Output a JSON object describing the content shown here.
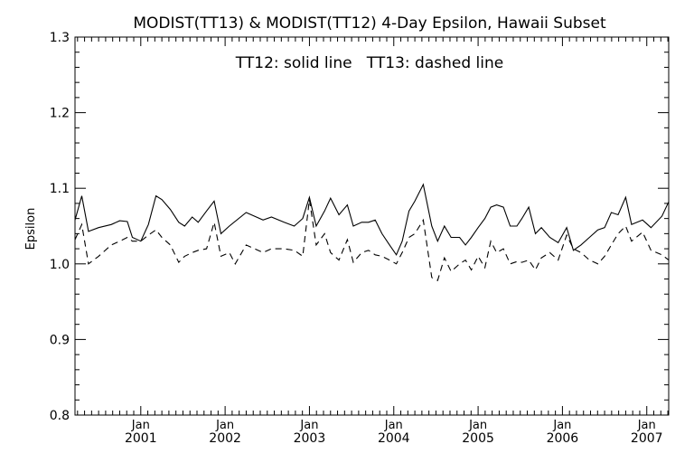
{
  "chart_data": {
    "type": "line",
    "title": "MODIST(TT13) & MODIST(TT12) 4-Day Epsilon, Hawaii Subset",
    "annotation": "TT12: solid line   TT13: dashed line",
    "ylabel": "Epsilon",
    "xlabel": "",
    "ylim": [
      0.8,
      1.3
    ],
    "xlim": [
      2000.22,
      2007.26
    ],
    "yticks": [
      "0.8",
      "0.9",
      "1.0",
      "1.1",
      "1.2",
      "1.3"
    ],
    "xticks": [
      {
        "month": "Jan",
        "year": "2001"
      },
      {
        "month": "Jan",
        "year": "2002"
      },
      {
        "month": "Jan",
        "year": "2003"
      },
      {
        "month": "Jan",
        "year": "2004"
      },
      {
        "month": "Jan",
        "year": "2005"
      },
      {
        "month": "Jan",
        "year": "2006"
      },
      {
        "month": "Jan",
        "year": "2007"
      }
    ],
    "grid": false,
    "series": [
      {
        "name": "TT12",
        "style": "solid",
        "color": "#000000",
        "points": [
          [
            2000.22,
            1.058
          ],
          [
            2000.3,
            1.09
          ],
          [
            2000.38,
            1.043
          ],
          [
            2000.5,
            1.048
          ],
          [
            2000.65,
            1.052
          ],
          [
            2000.75,
            1.057
          ],
          [
            2000.84,
            1.056
          ],
          [
            2000.9,
            1.035
          ],
          [
            2001.0,
            1.03
          ],
          [
            2001.09,
            1.052
          ],
          [
            2001.18,
            1.09
          ],
          [
            2001.25,
            1.085
          ],
          [
            2001.35,
            1.072
          ],
          [
            2001.45,
            1.055
          ],
          [
            2001.52,
            1.05
          ],
          [
            2001.61,
            1.062
          ],
          [
            2001.68,
            1.055
          ],
          [
            2001.78,
            1.07
          ],
          [
            2001.87,
            1.083
          ],
          [
            2001.95,
            1.04
          ],
          [
            2002.05,
            1.05
          ],
          [
            2002.25,
            1.068
          ],
          [
            2002.45,
            1.058
          ],
          [
            2002.55,
            1.062
          ],
          [
            2002.7,
            1.055
          ],
          [
            2002.82,
            1.05
          ],
          [
            2002.92,
            1.06
          ],
          [
            2003.0,
            1.088
          ],
          [
            2003.08,
            1.05
          ],
          [
            2003.18,
            1.07
          ],
          [
            2003.25,
            1.087
          ],
          [
            2003.35,
            1.065
          ],
          [
            2003.45,
            1.078
          ],
          [
            2003.52,
            1.05
          ],
          [
            2003.62,
            1.055
          ],
          [
            2003.7,
            1.055
          ],
          [
            2003.78,
            1.058
          ],
          [
            2003.86,
            1.04
          ],
          [
            2003.95,
            1.025
          ],
          [
            2004.03,
            1.012
          ],
          [
            2004.1,
            1.03
          ],
          [
            2004.18,
            1.07
          ],
          [
            2004.25,
            1.083
          ],
          [
            2004.35,
            1.105
          ],
          [
            2004.45,
            1.05
          ],
          [
            2004.52,
            1.03
          ],
          [
            2004.6,
            1.05
          ],
          [
            2004.68,
            1.035
          ],
          [
            2004.78,
            1.035
          ],
          [
            2004.85,
            1.025
          ],
          [
            2004.92,
            1.035
          ],
          [
            2005.0,
            1.048
          ],
          [
            2005.08,
            1.06
          ],
          [
            2005.15,
            1.075
          ],
          [
            2005.22,
            1.078
          ],
          [
            2005.3,
            1.075
          ],
          [
            2005.38,
            1.05
          ],
          [
            2005.46,
            1.05
          ],
          [
            2005.52,
            1.06
          ],
          [
            2005.6,
            1.075
          ],
          [
            2005.68,
            1.04
          ],
          [
            2005.75,
            1.048
          ],
          [
            2005.85,
            1.035
          ],
          [
            2005.95,
            1.028
          ],
          [
            2006.05,
            1.048
          ],
          [
            2006.13,
            1.018
          ],
          [
            2006.22,
            1.025
          ],
          [
            2006.32,
            1.035
          ],
          [
            2006.42,
            1.045
          ],
          [
            2006.5,
            1.048
          ],
          [
            2006.58,
            1.068
          ],
          [
            2006.66,
            1.065
          ],
          [
            2006.75,
            1.088
          ],
          [
            2006.82,
            1.052
          ],
          [
            2006.95,
            1.058
          ],
          [
            2007.05,
            1.048
          ],
          [
            2007.18,
            1.063
          ],
          [
            2007.26,
            1.082
          ]
        ]
      },
      {
        "name": "TT13",
        "style": "dashed",
        "color": "#000000",
        "points": [
          [
            2000.22,
            1.032
          ],
          [
            2000.3,
            1.052
          ],
          [
            2000.38,
            1.0
          ],
          [
            2000.5,
            1.01
          ],
          [
            2000.65,
            1.025
          ],
          [
            2000.75,
            1.03
          ],
          [
            2000.84,
            1.035
          ],
          [
            2000.9,
            1.03
          ],
          [
            2001.0,
            1.03
          ],
          [
            2001.09,
            1.038
          ],
          [
            2001.18,
            1.045
          ],
          [
            2001.25,
            1.035
          ],
          [
            2001.35,
            1.025
          ],
          [
            2001.45,
            1.002
          ],
          [
            2001.52,
            1.01
          ],
          [
            2001.61,
            1.015
          ],
          [
            2001.68,
            1.018
          ],
          [
            2001.78,
            1.02
          ],
          [
            2001.87,
            1.055
          ],
          [
            2001.95,
            1.01
          ],
          [
            2002.05,
            1.015
          ],
          [
            2002.12,
            1.0
          ],
          [
            2002.25,
            1.025
          ],
          [
            2002.45,
            1.015
          ],
          [
            2002.55,
            1.02
          ],
          [
            2002.7,
            1.02
          ],
          [
            2002.82,
            1.018
          ],
          [
            2002.92,
            1.01
          ],
          [
            2003.0,
            1.085
          ],
          [
            2003.08,
            1.025
          ],
          [
            2003.18,
            1.04
          ],
          [
            2003.25,
            1.015
          ],
          [
            2003.35,
            1.005
          ],
          [
            2003.45,
            1.032
          ],
          [
            2003.52,
            1.002
          ],
          [
            2003.62,
            1.015
          ],
          [
            2003.7,
            1.018
          ],
          [
            2003.78,
            1.012
          ],
          [
            2003.86,
            1.01
          ],
          [
            2003.95,
            1.005
          ],
          [
            2004.03,
            1.0
          ],
          [
            2004.1,
            1.015
          ],
          [
            2004.18,
            1.035
          ],
          [
            2004.25,
            1.04
          ],
          [
            2004.35,
            1.058
          ],
          [
            2004.45,
            0.982
          ],
          [
            2004.52,
            0.978
          ],
          [
            2004.6,
            1.008
          ],
          [
            2004.68,
            0.99
          ],
          [
            2004.78,
            1.0
          ],
          [
            2004.85,
            1.005
          ],
          [
            2004.92,
            0.992
          ],
          [
            2005.0,
            1.01
          ],
          [
            2005.08,
            0.995
          ],
          [
            2005.15,
            1.03
          ],
          [
            2005.22,
            1.015
          ],
          [
            2005.3,
            1.02
          ],
          [
            2005.38,
            1.0
          ],
          [
            2005.46,
            1.003
          ],
          [
            2005.52,
            1.002
          ],
          [
            2005.6,
            1.005
          ],
          [
            2005.68,
            0.992
          ],
          [
            2005.75,
            1.008
          ],
          [
            2005.85,
            1.015
          ],
          [
            2005.95,
            1.005
          ],
          [
            2006.05,
            1.038
          ],
          [
            2006.13,
            1.02
          ],
          [
            2006.22,
            1.015
          ],
          [
            2006.32,
            1.005
          ],
          [
            2006.42,
            1.0
          ],
          [
            2006.5,
            1.01
          ],
          [
            2006.58,
            1.025
          ],
          [
            2006.66,
            1.04
          ],
          [
            2006.75,
            1.05
          ],
          [
            2006.82,
            1.03
          ],
          [
            2006.95,
            1.042
          ],
          [
            2007.05,
            1.018
          ],
          [
            2007.18,
            1.012
          ],
          [
            2007.26,
            1.005
          ]
        ]
      }
    ]
  }
}
